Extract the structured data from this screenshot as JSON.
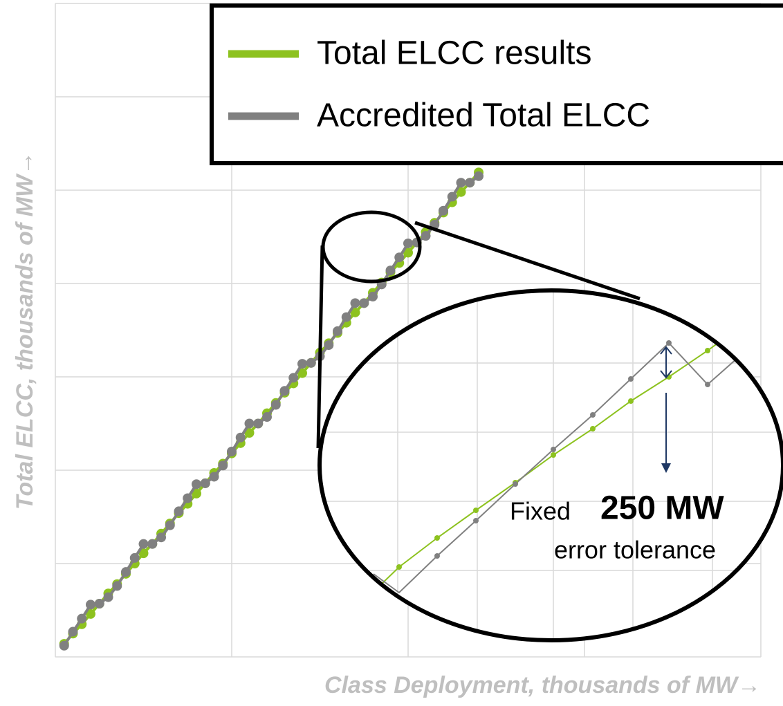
{
  "chart_data": {
    "type": "line",
    "x_label": "Class Deployment, thousands of MW→",
    "y_label": "Total ELCC, thousands of MW→",
    "x": [
      0.05,
      0.1,
      0.15,
      0.2,
      0.25,
      0.3,
      0.35,
      0.4,
      0.45,
      0.5,
      0.55,
      0.6,
      0.65,
      0.7,
      0.75,
      0.8,
      0.85,
      0.9,
      0.95,
      1.0,
      1.05,
      1.1,
      1.15,
      1.2,
      1.25,
      1.3,
      1.35,
      1.4,
      1.45,
      1.5,
      1.55,
      1.6,
      1.65,
      1.7,
      1.75,
      1.8,
      1.85,
      1.9,
      1.95,
      2.0,
      2.05,
      2.1,
      2.15,
      2.2,
      2.25,
      2.3,
      2.35,
      2.4
    ],
    "series": [
      {
        "name": "Total ELCC results",
        "color": "#8dc21f",
        "values": [
          0.14,
          0.25,
          0.35,
          0.46,
          0.57,
          0.68,
          0.78,
          0.89,
          1.0,
          1.11,
          1.21,
          1.32,
          1.43,
          1.54,
          1.64,
          1.75,
          1.86,
          1.97,
          2.07,
          2.18,
          2.29,
          2.4,
          2.5,
          2.61,
          2.72,
          2.83,
          2.93,
          3.04,
          3.15,
          3.26,
          3.36,
          3.47,
          3.58,
          3.69,
          3.79,
          3.9,
          4.01,
          4.12,
          4.22,
          4.33,
          4.44,
          4.55,
          4.65,
          4.76,
          4.87,
          4.98,
          5.08,
          5.19
        ]
      },
      {
        "name": "Accredited Total ELCC",
        "color": "#808080",
        "values": [
          0.12,
          0.27,
          0.41,
          0.56,
          0.57,
          0.64,
          0.76,
          0.91,
          1.06,
          1.21,
          1.21,
          1.28,
          1.41,
          1.56,
          1.7,
          1.85,
          1.86,
          1.93,
          2.05,
          2.2,
          2.35,
          2.5,
          2.5,
          2.57,
          2.7,
          2.85,
          2.99,
          3.14,
          3.15,
          3.22,
          3.34,
          3.49,
          3.64,
          3.79,
          3.79,
          3.86,
          3.99,
          4.14,
          4.28,
          4.43,
          4.44,
          4.51,
          4.63,
          4.78,
          4.93,
          5.08,
          5.08,
          5.15
        ]
      }
    ],
    "xlim": [
      0,
      4
    ],
    "xticks": [
      0,
      1,
      2,
      3,
      4
    ],
    "ylim": [
      0,
      7
    ],
    "yticks": [
      0,
      1,
      2,
      3,
      4,
      5,
      6,
      7
    ],
    "grid": true,
    "annotation": {
      "prefix": "Fixed",
      "emphasis": "250 MW",
      "suffix": "error tolerance"
    }
  }
}
